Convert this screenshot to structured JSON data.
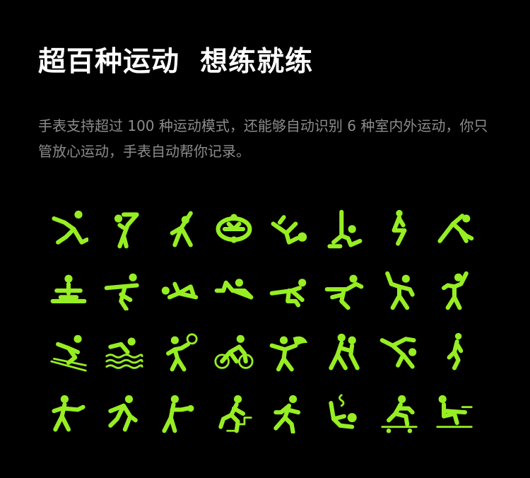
{
  "page": {
    "headline": "超百种运动  想练就练",
    "description": "手表支持超过 100 种运动模式，还能够自动识别 6 种室内外运动，你只管放心运动，手表自动帮你记录。"
  },
  "theme": {
    "background": "#000000",
    "accent": "#97ee23",
    "text": "#ffffff",
    "muted": "#8c8c8c"
  },
  "icons": [
    "yoga-lunge-icon",
    "yoga-stretch-icon",
    "yoga-warrior-icon",
    "rowing-machine-icon",
    "yoga-kick-icon",
    "yoga-seated-icon",
    "lightning-pose-icon",
    "yoga-plank-icon",
    "seated-meditation-icon",
    "yoga-balance-icon",
    "yoga-twist-icon",
    "yoga-cobra-icon",
    "yoga-reclined-icon",
    "yoga-dance-icon",
    "freestyle-dance-icon",
    "street-dance-icon",
    "skiing-icon",
    "swimming-icon",
    "tennis-icon",
    "cycling-icon",
    "badminton-icon",
    "ballroom-dance-icon",
    "breakdance-icon",
    "walking-icon",
    "martial-arts-icon",
    "climbing-icon",
    "boxing-icon",
    "stair-climbing-icon",
    "running-icon",
    "seated-stretch-icon",
    "skateboarding-icon",
    "rowing-icon"
  ]
}
